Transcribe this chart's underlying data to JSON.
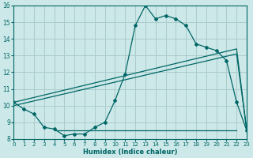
{
  "xlabel": "Humidex (Indice chaleur)",
  "background_color": "#cde8e8",
  "grid_color": "#aacccc",
  "line_color": "#006666",
  "x_min": 0,
  "x_max": 23,
  "y_min": 8,
  "y_max": 16,
  "curve1_x": [
    0,
    1,
    2,
    3,
    4,
    5,
    6,
    7,
    8,
    9,
    10,
    11,
    12,
    13,
    14,
    15,
    16,
    17,
    18,
    19,
    20,
    21,
    22,
    23
  ],
  "curve1_y": [
    10.2,
    9.8,
    9.5,
    8.7,
    8.6,
    8.2,
    8.3,
    8.3,
    8.7,
    9.0,
    10.3,
    11.9,
    14.8,
    16.0,
    15.2,
    15.4,
    15.2,
    14.8,
    13.7,
    13.5,
    13.3,
    12.7,
    10.2,
    8.5
  ],
  "curve2_x": [
    0,
    22,
    23
  ],
  "curve2_y": [
    10.2,
    13.4,
    8.5
  ],
  "curve3_x": [
    0,
    22,
    23
  ],
  "curve3_y": [
    10.0,
    13.1,
    8.5
  ],
  "curve4_x": [
    4,
    22
  ],
  "curve4_y": [
    8.5,
    8.5
  ],
  "tick_x": [
    0,
    1,
    2,
    3,
    4,
    5,
    6,
    7,
    8,
    9,
    10,
    11,
    12,
    13,
    14,
    15,
    16,
    17,
    18,
    19,
    20,
    21,
    22,
    23
  ],
  "tick_y": [
    8,
    9,
    10,
    11,
    12,
    13,
    14,
    15,
    16
  ]
}
